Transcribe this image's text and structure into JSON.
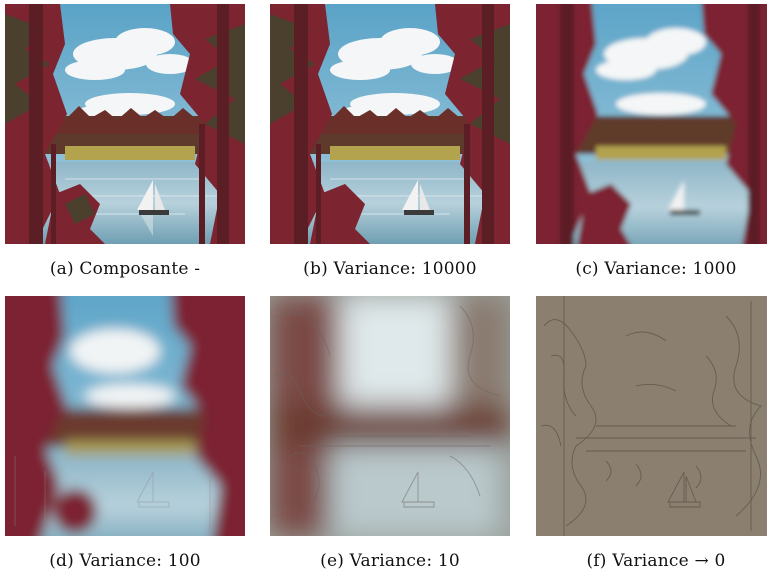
{
  "figure": {
    "panels": [
      {
        "caption": "(a) Composante -",
        "variant": "sharp"
      },
      {
        "caption": "(b) Variance: 10000",
        "variant": "sharp"
      },
      {
        "caption": "(c) Variance: 1000",
        "variant": "soft"
      },
      {
        "caption": "(d) Variance: 100",
        "variant": "blur"
      },
      {
        "caption": "(e) Variance: 10",
        "variant": "heavy"
      },
      {
        "caption": "(f) Variance → 0",
        "variant": "edges"
      }
    ]
  }
}
